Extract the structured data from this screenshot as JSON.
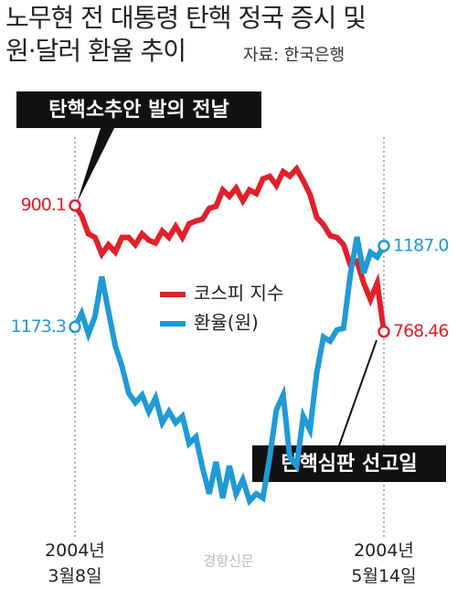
{
  "chart_data": {
    "type": "line",
    "title": "노무현 전 대통령 탄핵 정국 증시 및\n원·달러 환율 추이",
    "source": "자료: 한국은행",
    "credit": "경향신문",
    "annotations": [
      "탄핵소추안 발의 전날",
      "탄핵심판 선고일"
    ],
    "categories": [
      "2004년\n3월8일",
      null,
      null,
      null,
      null,
      null,
      null,
      null,
      null,
      null,
      null,
      null,
      null,
      null,
      null,
      null,
      null,
      null,
      null,
      null,
      null,
      null,
      null,
      null,
      null,
      null,
      null,
      null,
      null,
      null,
      null,
      null,
      null,
      null,
      null,
      null,
      null,
      null,
      null,
      null,
      null,
      null,
      null,
      null,
      null,
      null,
      "2004년\n5월14일"
    ],
    "ylim": [
      580,
      1000
    ],
    "y2lim": [
      1142,
      1210
    ],
    "series": [
      {
        "name": "코스피 지수",
        "color": "#e2202b",
        "values": [
          900.1,
          889.6,
          870.5,
          866.7,
          849.5,
          859.1,
          851.5,
          866.7,
          866.7,
          859.1,
          870.5,
          863.8,
          860.9,
          873.4,
          866.7,
          878.2,
          866.7,
          881.0,
          883.9,
          885.8,
          897.2,
          899.1,
          916.3,
          909.6,
          918.2,
          904.9,
          916.3,
          912.5,
          927.8,
          930.6,
          921.1,
          935.4,
          930.6,
          938.3,
          925.9,
          911.5,
          887.7,
          880.1,
          868.6,
          866.7,
          859.1,
          838.1,
          841.9,
          819.0,
          801.8,
          819.0,
          768.46
        ],
        "value_labels": [
          "900.1",
          null,
          null,
          null,
          null,
          null,
          null,
          null,
          null,
          null,
          null,
          null,
          null,
          null,
          null,
          null,
          null,
          null,
          null,
          null,
          null,
          null,
          null,
          null,
          null,
          null,
          null,
          null,
          null,
          null,
          null,
          null,
          null,
          null,
          null,
          null,
          null,
          null,
          null,
          null,
          null,
          null,
          null,
          null,
          null,
          null,
          "768.46"
        ]
      },
      {
        "name": "환율(원)",
        "color": "#1f9ad6",
        "axis": "y2",
        "values": [
          1173.3,
          1175.6,
          1172.1,
          1175.1,
          1181.8,
          1175.9,
          1170.1,
          1166.7,
          1162.1,
          1160.5,
          1161.8,
          1159.0,
          1161.3,
          1157.1,
          1159.0,
          1157.1,
          1158.2,
          1153.6,
          1154.7,
          1149.5,
          1145.1,
          1150.5,
          1144.4,
          1149.8,
          1145.1,
          1147.5,
          1143.9,
          1145.1,
          1144.4,
          1151.3,
          1159.3,
          1161.8,
          1151.3,
          1149.8,
          1158.2,
          1155.9,
          1165.5,
          1171.6,
          1170.9,
          1172.8,
          1173.1,
          1182.1,
          1188.5,
          1182.4,
          1185.9,
          1185.1,
          1187.0
        ],
        "value_labels": [
          "1173.3",
          null,
          null,
          null,
          null,
          null,
          null,
          null,
          null,
          null,
          null,
          null,
          null,
          null,
          null,
          null,
          null,
          null,
          null,
          null,
          null,
          null,
          null,
          null,
          null,
          null,
          null,
          null,
          null,
          null,
          null,
          null,
          null,
          null,
          null,
          null,
          null,
          null,
          null,
          null,
          null,
          null,
          null,
          null,
          null,
          null,
          "1187.0"
        ]
      }
    ]
  }
}
